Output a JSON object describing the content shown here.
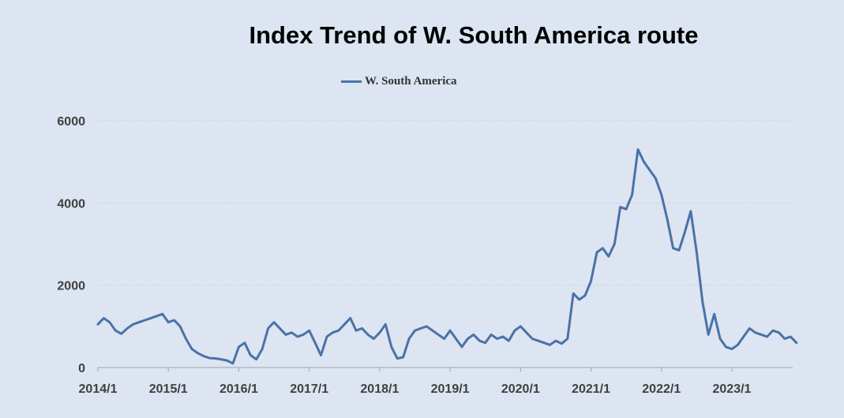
{
  "chart_data": {
    "type": "line",
    "title": "Index Trend of W. South America route",
    "xlabel": "",
    "ylabel": "",
    "ylim": [
      0,
      6000
    ],
    "yticks": [
      0,
      2000,
      4000,
      6000
    ],
    "xticks": [
      "2014/1",
      "2015/1",
      "2016/1",
      "2017/1",
      "2018/1",
      "2019/1",
      "2020/1",
      "2021/1",
      "2022/1",
      "2023/1"
    ],
    "grid": true,
    "legend_position": "top-center",
    "colors": {
      "series": "#4a72a8",
      "background": "#dce5f1",
      "grid": "#c9d2de"
    },
    "series": [
      {
        "name": "W. South America",
        "points": [
          [
            "2014/1",
            1050
          ],
          [
            "2014/2",
            1200
          ],
          [
            "2014/3",
            1100
          ],
          [
            "2014/4",
            900
          ],
          [
            "2014/5",
            820
          ],
          [
            "2014/6",
            950
          ],
          [
            "2014/7",
            1050
          ],
          [
            "2014/8",
            1100
          ],
          [
            "2014/9",
            1150
          ],
          [
            "2014/10",
            1200
          ],
          [
            "2014/11",
            1250
          ],
          [
            "2014/12",
            1300
          ],
          [
            "2015/1",
            1100
          ],
          [
            "2015/2",
            1150
          ],
          [
            "2015/3",
            1000
          ],
          [
            "2015/4",
            700
          ],
          [
            "2015/5",
            450
          ],
          [
            "2015/6",
            350
          ],
          [
            "2015/7",
            280
          ],
          [
            "2015/8",
            230
          ],
          [
            "2015/9",
            220
          ],
          [
            "2015/10",
            200
          ],
          [
            "2015/11",
            170
          ],
          [
            "2015/12",
            100
          ],
          [
            "2016/1",
            500
          ],
          [
            "2016/2",
            600
          ],
          [
            "2016/3",
            300
          ],
          [
            "2016/4",
            200
          ],
          [
            "2016/5",
            450
          ],
          [
            "2016/6",
            950
          ],
          [
            "2016/7",
            1100
          ],
          [
            "2016/8",
            950
          ],
          [
            "2016/9",
            800
          ],
          [
            "2016/10",
            850
          ],
          [
            "2016/11",
            750
          ],
          [
            "2016/12",
            800
          ],
          [
            "2017/1",
            900
          ],
          [
            "2017/2",
            600
          ],
          [
            "2017/3",
            300
          ],
          [
            "2017/4",
            750
          ],
          [
            "2017/5",
            850
          ],
          [
            "2017/6",
            900
          ],
          [
            "2017/7",
            1050
          ],
          [
            "2017/8",
            1200
          ],
          [
            "2017/9",
            900
          ],
          [
            "2017/10",
            950
          ],
          [
            "2017/11",
            800
          ],
          [
            "2017/12",
            700
          ],
          [
            "2018/1",
            850
          ],
          [
            "2018/2",
            1050
          ],
          [
            "2018/3",
            500
          ],
          [
            "2018/4",
            220
          ],
          [
            "2018/5",
            250
          ],
          [
            "2018/6",
            700
          ],
          [
            "2018/7",
            900
          ],
          [
            "2018/8",
            950
          ],
          [
            "2018/9",
            1000
          ],
          [
            "2018/10",
            900
          ],
          [
            "2018/11",
            800
          ],
          [
            "2018/12",
            700
          ],
          [
            "2019/1",
            900
          ],
          [
            "2019/2",
            700
          ],
          [
            "2019/3",
            500
          ],
          [
            "2019/4",
            700
          ],
          [
            "2019/5",
            800
          ],
          [
            "2019/6",
            650
          ],
          [
            "2019/7",
            600
          ],
          [
            "2019/8",
            800
          ],
          [
            "2019/9",
            700
          ],
          [
            "2019/10",
            750
          ],
          [
            "2019/11",
            650
          ],
          [
            "2019/12",
            900
          ],
          [
            "2020/1",
            1000
          ],
          [
            "2020/2",
            850
          ],
          [
            "2020/3",
            700
          ],
          [
            "2020/4",
            650
          ],
          [
            "2020/5",
            600
          ],
          [
            "2020/6",
            550
          ],
          [
            "2020/7",
            650
          ],
          [
            "2020/8",
            580
          ],
          [
            "2020/9",
            700
          ],
          [
            "2020/10",
            1800
          ],
          [
            "2020/11",
            1650
          ],
          [
            "2020/12",
            1750
          ],
          [
            "2021/1",
            2100
          ],
          [
            "2021/2",
            2800
          ],
          [
            "2021/3",
            2900
          ],
          [
            "2021/4",
            2700
          ],
          [
            "2021/5",
            3000
          ],
          [
            "2021/6",
            3900
          ],
          [
            "2021/7",
            3850
          ],
          [
            "2021/8",
            4200
          ],
          [
            "2021/9",
            5300
          ],
          [
            "2021/10",
            5000
          ],
          [
            "2021/11",
            4800
          ],
          [
            "2021/12",
            4600
          ],
          [
            "2022/1",
            4200
          ],
          [
            "2022/2",
            3600
          ],
          [
            "2022/3",
            2900
          ],
          [
            "2022/4",
            2850
          ],
          [
            "2022/5",
            3300
          ],
          [
            "2022/6",
            3800
          ],
          [
            "2022/7",
            2800
          ],
          [
            "2022/8",
            1600
          ],
          [
            "2022/9",
            800
          ],
          [
            "2022/10",
            1300
          ],
          [
            "2022/11",
            700
          ],
          [
            "2022/12",
            500
          ],
          [
            "2023/1",
            450
          ],
          [
            "2023/2",
            550
          ],
          [
            "2023/3",
            750
          ],
          [
            "2023/4",
            950
          ],
          [
            "2023/5",
            850
          ],
          [
            "2023/6",
            800
          ],
          [
            "2023/7",
            750
          ],
          [
            "2023/8",
            900
          ],
          [
            "2023/9",
            850
          ],
          [
            "2023/10",
            700
          ],
          [
            "2023/11",
            750
          ],
          [
            "2023/12",
            600
          ]
        ]
      }
    ]
  }
}
